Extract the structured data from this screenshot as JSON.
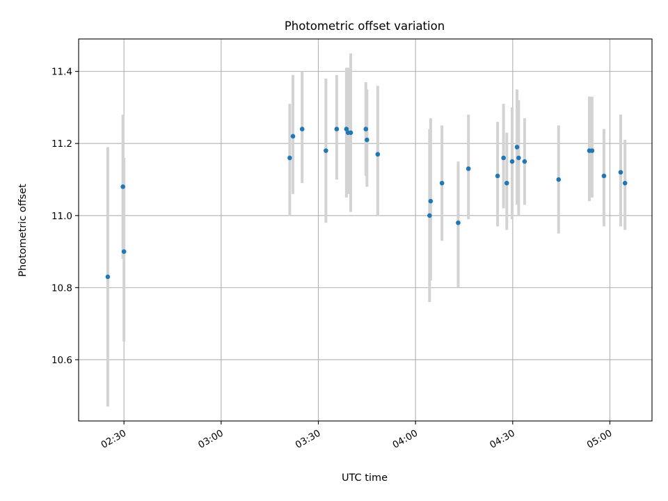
{
  "chart_data": {
    "type": "scatter",
    "title": "Photometric offset variation",
    "xlabel": "UTC time",
    "ylabel": "Photometric offset",
    "x_tick_labels": [
      "02:30",
      "03:00",
      "03:30",
      "04:00",
      "04:30",
      "05:00"
    ],
    "x_tick_values": [
      "02:30",
      "03:00",
      "03:30",
      "04:00",
      "04:30",
      "05:00"
    ],
    "y_ticks": [
      10.6,
      10.8,
      11.0,
      11.2,
      11.4
    ],
    "xlim": [
      "02:16",
      "05:13"
    ],
    "ylim": [
      10.43,
      11.49
    ],
    "grid": true,
    "points": [
      {
        "x": "02:25:00",
        "y": 10.83,
        "yerr_low": 10.47,
        "yerr_high": 11.19
      },
      {
        "x": "02:29:40",
        "y": 11.08,
        "yerr_low": 10.88,
        "yerr_high": 11.28
      },
      {
        "x": "02:30:00",
        "y": 10.9,
        "yerr_low": 10.65,
        "yerr_high": 11.16
      },
      {
        "x": "03:21:10",
        "y": 11.16,
        "yerr_low": 11.0,
        "yerr_high": 11.31
      },
      {
        "x": "03:22:10",
        "y": 11.22,
        "yerr_low": 11.06,
        "yerr_high": 11.39
      },
      {
        "x": "03:25:00",
        "y": 11.24,
        "yerr_low": 11.09,
        "yerr_high": 11.4
      },
      {
        "x": "03:32:20",
        "y": 11.18,
        "yerr_low": 10.98,
        "yerr_high": 11.38
      },
      {
        "x": "03:35:40",
        "y": 11.24,
        "yerr_low": 11.1,
        "yerr_high": 11.39
      },
      {
        "x": "03:38:40",
        "y": 11.24,
        "yerr_low": 11.05,
        "yerr_high": 11.41
      },
      {
        "x": "03:39:10",
        "y": 11.23,
        "yerr_low": 11.06,
        "yerr_high": 11.41
      },
      {
        "x": "03:40:00",
        "y": 11.23,
        "yerr_low": 11.01,
        "yerr_high": 11.45
      },
      {
        "x": "03:44:40",
        "y": 11.24,
        "yerr_low": 11.11,
        "yerr_high": 11.37
      },
      {
        "x": "03:45:00",
        "y": 11.21,
        "yerr_low": 11.08,
        "yerr_high": 11.35
      },
      {
        "x": "03:48:20",
        "y": 11.17,
        "yerr_low": 11.0,
        "yerr_high": 11.36
      },
      {
        "x": "04:04:20",
        "y": 11.0,
        "yerr_low": 10.76,
        "yerr_high": 11.24
      },
      {
        "x": "04:04:40",
        "y": 11.04,
        "yerr_low": 10.82,
        "yerr_high": 11.27
      },
      {
        "x": "04:08:10",
        "y": 11.09,
        "yerr_low": 10.93,
        "yerr_high": 11.25
      },
      {
        "x": "04:13:10",
        "y": 10.98,
        "yerr_low": 10.8,
        "yerr_high": 11.15
      },
      {
        "x": "04:16:20",
        "y": 11.13,
        "yerr_low": 10.99,
        "yerr_high": 11.28
      },
      {
        "x": "04:25:20",
        "y": 11.11,
        "yerr_low": 10.97,
        "yerr_high": 11.26
      },
      {
        "x": "04:27:10",
        "y": 11.16,
        "yerr_low": 11.02,
        "yerr_high": 11.31
      },
      {
        "x": "04:28:10",
        "y": 11.09,
        "yerr_low": 10.96,
        "yerr_high": 11.23
      },
      {
        "x": "04:29:50",
        "y": 11.15,
        "yerr_low": 10.99,
        "yerr_high": 11.3
      },
      {
        "x": "04:31:20",
        "y": 11.19,
        "yerr_low": 11.03,
        "yerr_high": 11.35
      },
      {
        "x": "04:31:50",
        "y": 11.16,
        "yerr_low": 11.0,
        "yerr_high": 11.32
      },
      {
        "x": "04:33:40",
        "y": 11.15,
        "yerr_low": 11.03,
        "yerr_high": 11.27
      },
      {
        "x": "04:44:10",
        "y": 11.1,
        "yerr_low": 10.95,
        "yerr_high": 11.25
      },
      {
        "x": "04:53:40",
        "y": 11.18,
        "yerr_low": 11.04,
        "yerr_high": 11.33
      },
      {
        "x": "04:54:30",
        "y": 11.18,
        "yerr_low": 11.05,
        "yerr_high": 11.33
      },
      {
        "x": "04:58:10",
        "y": 11.11,
        "yerr_low": 10.97,
        "yerr_high": 11.24
      },
      {
        "x": "05:03:20",
        "y": 11.12,
        "yerr_low": 10.97,
        "yerr_high": 11.28
      },
      {
        "x": "05:04:40",
        "y": 11.09,
        "yerr_low": 10.96,
        "yerr_high": 11.21
      }
    ]
  },
  "colors": {
    "marker": "#1f77b4",
    "errorbar": "#d3d3d3",
    "grid": "#b0b0b0",
    "axes": "#000000"
  }
}
